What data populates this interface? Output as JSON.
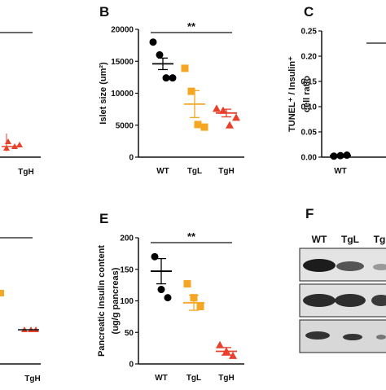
{
  "chart_data": [
    {
      "type": "dot",
      "panel": "B",
      "y_label": [
        "Islet size (um²)"
      ],
      "categories": [
        "WT",
        "TgL",
        "TgH"
      ],
      "points": [
        [
          18000,
          16000,
          12400,
          12400
        ],
        [
          13900,
          10300,
          5100,
          4700
        ],
        [
          7600,
          7300,
          5000,
          6200
        ]
      ],
      "means": [
        14600,
        8300,
        6900
      ],
      "sems": [
        900,
        2100,
        600
      ],
      "colors": [
        "#000000",
        "#f5a623",
        "#e8402a"
      ],
      "markers": [
        "circle",
        "square",
        "triangle"
      ],
      "ylim": [
        0,
        20000
      ],
      "yticks": [
        0,
        5000,
        10000,
        15000,
        20000
      ],
      "annotation": "**"
    },
    {
      "type": "dot",
      "panel": "C",
      "y_label": [
        "TUNEL⁺ / Insulin⁺",
        "cell ratio"
      ],
      "categories": [
        "WT"
      ],
      "points": [
        [
          0.002,
          0.003,
          0.004
        ]
      ],
      "means": [
        0.003
      ],
      "sems": [
        0.001
      ],
      "colors": [
        "#000000"
      ],
      "markers": [
        "circle"
      ],
      "ylim": [
        0,
        0.25
      ],
      "yticks": [
        {
          "value": 0,
          "label": "0.00"
        },
        {
          "value": 0.05,
          "label": "0.05"
        },
        {
          "value": 0.1,
          "label": "0.10"
        },
        {
          "value": 0.15,
          "label": "0.15"
        },
        {
          "value": 0.2,
          "label": "0.20"
        },
        {
          "value": 0.25,
          "label": "0.25"
        }
      ]
    },
    {
      "type": "dot",
      "panel": "E",
      "y_label": [
        "Pancreatic insulin content",
        "(ug/g pancreas)"
      ],
      "categories": [
        "WT",
        "TgL",
        "TgH"
      ],
      "points": [
        [
          170,
          118,
          105
        ],
        [
          127,
          105,
          91
        ],
        [
          30,
          20,
          13
        ]
      ],
      "means": [
        147,
        97,
        20
      ],
      "sems": [
        20,
        12,
        6
      ],
      "colors": [
        "#000000",
        "#f5a623",
        "#e8402a"
      ],
      "markers": [
        "circle",
        "square",
        "triangle"
      ],
      "ylim": [
        0,
        200
      ],
      "yticks": [
        0,
        50,
        100,
        150,
        200
      ],
      "annotation": "**"
    }
  ],
  "partial": {
    "top_label": "TgH",
    "bottom_label": "TgH"
  },
  "blot": {
    "panel": "F",
    "lanes": [
      "WT",
      "TgL",
      "Tg"
    ]
  }
}
